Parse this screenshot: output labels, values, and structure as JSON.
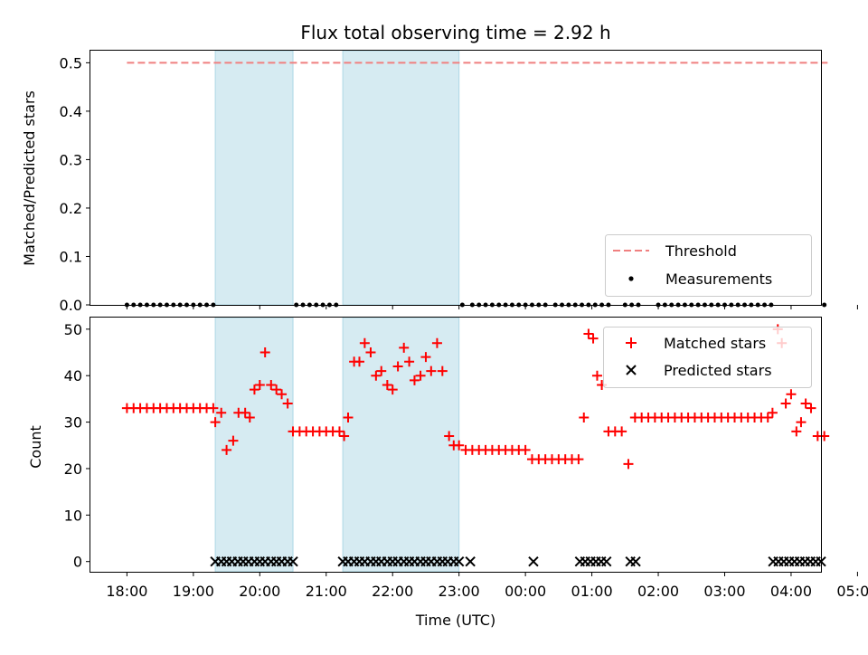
{
  "chart_data": [
    {
      "type": "scatter",
      "title": "Flux total observing time = 2.92 h",
      "xlabel": "",
      "ylabel": "Matched/Predicted stars",
      "ylim": [
        0,
        0.525
      ],
      "yticks": [
        0.0,
        0.1,
        0.2,
        0.3,
        0.4,
        0.5
      ],
      "ytick_labels": [
        "0.0",
        "0.1",
        "0.2",
        "0.3",
        "0.4",
        "0.5"
      ],
      "threshold": {
        "label": "Threshold",
        "value": 0.5,
        "x_start": 0.0,
        "x_end": 10.55,
        "color": "#f08080"
      },
      "measurements": {
        "label": "Measurements",
        "color": "#000000",
        "x": [
          0.0,
          0.1,
          0.2,
          0.3,
          0.4,
          0.5,
          0.6,
          0.7,
          0.8,
          0.9,
          1.0,
          1.1,
          1.2,
          1.3,
          2.55,
          2.65,
          2.75,
          2.85,
          2.95,
          3.05,
          3.15,
          5.05,
          5.2,
          5.3,
          5.4,
          5.5,
          5.6,
          5.7,
          5.8,
          5.9,
          6.0,
          6.1,
          6.2,
          6.3,
          6.45,
          6.55,
          6.65,
          6.75,
          6.85,
          6.95,
          7.05,
          7.15,
          7.25,
          7.5,
          7.6,
          7.7,
          8.0,
          8.1,
          8.2,
          8.3,
          8.4,
          8.5,
          8.6,
          8.7,
          8.8,
          8.9,
          9.0,
          9.1,
          9.2,
          9.3,
          9.4,
          9.5,
          9.6,
          9.7,
          10.5
        ],
        "value": 0.0
      },
      "shaded_regions": [
        [
          1.33,
          2.5
        ],
        [
          3.25,
          5.0
        ]
      ]
    },
    {
      "type": "scatter",
      "title": "",
      "xlabel": "Time (UTC)",
      "ylabel": "Count",
      "ylim": [
        -2.2,
        52.5
      ],
      "yticks": [
        0,
        10,
        20,
        30,
        40,
        50
      ],
      "ytick_labels": [
        "0",
        "10",
        "20",
        "30",
        "40",
        "50"
      ],
      "xlim": [
        -0.55,
        10.45
      ],
      "xtick_values": [
        0,
        1,
        2,
        3,
        4,
        5,
        6,
        7,
        8,
        9,
        10,
        11
      ],
      "xtick_labels": [
        "18:00",
        "19:00",
        "20:00",
        "21:00",
        "22:00",
        "23:00",
        "00:00",
        "01:00",
        "02:00",
        "03:00",
        "04:00",
        "05:00"
      ],
      "shaded_regions": [
        [
          1.33,
          2.5
        ],
        [
          3.25,
          5.0
        ]
      ],
      "series": [
        {
          "name": "Matched stars",
          "marker": "+",
          "color": "#ff0000",
          "points": [
            [
              0.0,
              33
            ],
            [
              0.1,
              33
            ],
            [
              0.2,
              33
            ],
            [
              0.3,
              33
            ],
            [
              0.4,
              33
            ],
            [
              0.5,
              33
            ],
            [
              0.6,
              33
            ],
            [
              0.7,
              33
            ],
            [
              0.8,
              33
            ],
            [
              0.9,
              33
            ],
            [
              1.0,
              33
            ],
            [
              1.1,
              33
            ],
            [
              1.2,
              33
            ],
            [
              1.3,
              33
            ],
            [
              1.33,
              30
            ],
            [
              1.42,
              32
            ],
            [
              1.5,
              24
            ],
            [
              1.6,
              26
            ],
            [
              1.68,
              32
            ],
            [
              1.78,
              32
            ],
            [
              1.85,
              31
            ],
            [
              1.92,
              37
            ],
            [
              2.0,
              38
            ],
            [
              2.08,
              45
            ],
            [
              2.17,
              38
            ],
            [
              2.25,
              37
            ],
            [
              2.33,
              36
            ],
            [
              2.42,
              34
            ],
            [
              2.5,
              28
            ],
            [
              2.6,
              28
            ],
            [
              2.7,
              28
            ],
            [
              2.8,
              28
            ],
            [
              2.9,
              28
            ],
            [
              3.0,
              28
            ],
            [
              3.1,
              28
            ],
            [
              3.2,
              28
            ],
            [
              3.27,
              27
            ],
            [
              3.33,
              31
            ],
            [
              3.42,
              43
            ],
            [
              3.5,
              43
            ],
            [
              3.58,
              47
            ],
            [
              3.67,
              45
            ],
            [
              3.75,
              40
            ],
            [
              3.83,
              41
            ],
            [
              3.92,
              38
            ],
            [
              4.0,
              37
            ],
            [
              4.08,
              42
            ],
            [
              4.17,
              46
            ],
            [
              4.25,
              43
            ],
            [
              4.33,
              39
            ],
            [
              4.42,
              40
            ],
            [
              4.5,
              44
            ],
            [
              4.58,
              41
            ],
            [
              4.67,
              47
            ],
            [
              4.75,
              41
            ],
            [
              4.85,
              27
            ],
            [
              4.92,
              25
            ],
            [
              5.0,
              25
            ],
            [
              5.1,
              24
            ],
            [
              5.2,
              24
            ],
            [
              5.3,
              24
            ],
            [
              5.4,
              24
            ],
            [
              5.5,
              24
            ],
            [
              5.6,
              24
            ],
            [
              5.7,
              24
            ],
            [
              5.8,
              24
            ],
            [
              5.9,
              24
            ],
            [
              6.0,
              24
            ],
            [
              6.1,
              22
            ],
            [
              6.2,
              22
            ],
            [
              6.3,
              22
            ],
            [
              6.4,
              22
            ],
            [
              6.5,
              22
            ],
            [
              6.6,
              22
            ],
            [
              6.7,
              22
            ],
            [
              6.8,
              22
            ],
            [
              6.88,
              31
            ],
            [
              6.95,
              49
            ],
            [
              7.02,
              48
            ],
            [
              7.08,
              40
            ],
            [
              7.15,
              38
            ],
            [
              7.25,
              28
            ],
            [
              7.35,
              28
            ],
            [
              7.45,
              28
            ],
            [
              7.55,
              21
            ],
            [
              7.65,
              31
            ],
            [
              7.75,
              31
            ],
            [
              7.85,
              31
            ],
            [
              7.95,
              31
            ],
            [
              8.05,
              31
            ],
            [
              8.15,
              31
            ],
            [
              8.25,
              31
            ],
            [
              8.35,
              31
            ],
            [
              8.45,
              31
            ],
            [
              8.55,
              31
            ],
            [
              8.65,
              31
            ],
            [
              8.75,
              31
            ],
            [
              8.85,
              31
            ],
            [
              8.95,
              31
            ],
            [
              9.05,
              31
            ],
            [
              9.15,
              31
            ],
            [
              9.25,
              31
            ],
            [
              9.35,
              31
            ],
            [
              9.45,
              31
            ],
            [
              9.55,
              31
            ],
            [
              9.65,
              31
            ],
            [
              9.72,
              32
            ],
            [
              9.8,
              50
            ],
            [
              9.86,
              47
            ],
            [
              9.92,
              34
            ],
            [
              10.0,
              36
            ],
            [
              10.08,
              28
            ],
            [
              10.15,
              30
            ],
            [
              10.22,
              34
            ],
            [
              10.3,
              33
            ],
            [
              10.4,
              27
            ],
            [
              10.5,
              27
            ]
          ]
        },
        {
          "name": "Predicted stars",
          "marker": "x",
          "color": "#000000",
          "points": [
            [
              1.33,
              0
            ],
            [
              1.42,
              0
            ],
            [
              1.5,
              0
            ],
            [
              1.58,
              0
            ],
            [
              1.67,
              0
            ],
            [
              1.75,
              0
            ],
            [
              1.83,
              0
            ],
            [
              1.92,
              0
            ],
            [
              2.0,
              0
            ],
            [
              2.08,
              0
            ],
            [
              2.17,
              0
            ],
            [
              2.25,
              0
            ],
            [
              2.33,
              0
            ],
            [
              2.42,
              0
            ],
            [
              2.5,
              0
            ],
            [
              3.25,
              0
            ],
            [
              3.33,
              0
            ],
            [
              3.42,
              0
            ],
            [
              3.5,
              0
            ],
            [
              3.58,
              0
            ],
            [
              3.67,
              0
            ],
            [
              3.75,
              0
            ],
            [
              3.83,
              0
            ],
            [
              3.92,
              0
            ],
            [
              4.0,
              0
            ],
            [
              4.08,
              0
            ],
            [
              4.17,
              0
            ],
            [
              4.25,
              0
            ],
            [
              4.33,
              0
            ],
            [
              4.42,
              0
            ],
            [
              4.5,
              0
            ],
            [
              4.58,
              0
            ],
            [
              4.67,
              0
            ],
            [
              4.75,
              0
            ],
            [
              4.83,
              0
            ],
            [
              4.92,
              0
            ],
            [
              5.0,
              0
            ],
            [
              5.17,
              0
            ],
            [
              6.12,
              0
            ],
            [
              6.82,
              0
            ],
            [
              6.9,
              0
            ],
            [
              6.98,
              0
            ],
            [
              7.06,
              0
            ],
            [
              7.14,
              0
            ],
            [
              7.22,
              0
            ],
            [
              7.58,
              0
            ],
            [
              7.66,
              0
            ],
            [
              9.73,
              0
            ],
            [
              9.81,
              0
            ],
            [
              9.89,
              0
            ],
            [
              9.97,
              0
            ],
            [
              10.05,
              0
            ],
            [
              10.13,
              0
            ],
            [
              10.21,
              0
            ],
            [
              10.29,
              0
            ],
            [
              10.37,
              0
            ],
            [
              10.45,
              0
            ]
          ]
        }
      ]
    }
  ]
}
